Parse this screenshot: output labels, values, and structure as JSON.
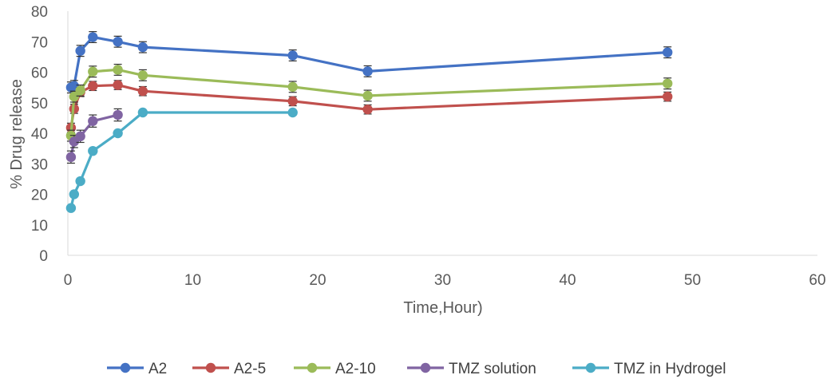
{
  "chart_data": {
    "type": "line",
    "title": "",
    "xlabel": "Time,Hour)",
    "ylabel": "% Drug release",
    "xlim": [
      0,
      60
    ],
    "ylim": [
      0,
      80
    ],
    "xticks": [
      0,
      10,
      20,
      30,
      40,
      50,
      60
    ],
    "yticks": [
      0,
      10,
      20,
      30,
      40,
      50,
      60,
      70,
      80
    ],
    "grid": false,
    "legend_position": "bottom",
    "error_bars": true,
    "series": [
      {
        "name": "A2",
        "color": "#4472C4",
        "x": [
          0.25,
          0.5,
          1,
          2,
          4,
          6,
          18,
          24,
          48
        ],
        "y": [
          55,
          55.5,
          67,
          71.5,
          70,
          68.2,
          65.5,
          60.3,
          66.5
        ],
        "err": [
          1.8,
          1.8,
          1.8,
          1.8,
          1.8,
          1.8,
          1.8,
          1.8,
          1.8
        ]
      },
      {
        "name": "A2-5",
        "color": "#C0504D",
        "x": [
          0.25,
          0.5,
          1,
          2,
          4,
          6,
          18,
          24,
          48
        ],
        "y": [
          41.8,
          48,
          53.5,
          55.5,
          55.8,
          53.8,
          50.5,
          47.8,
          52
        ],
        "err": [
          1.5,
          1.5,
          1.5,
          1.5,
          1.5,
          1.5,
          1.5,
          1.5,
          1.5
        ]
      },
      {
        "name": "A2-10",
        "color": "#9BBB59",
        "x": [
          0.25,
          0.5,
          1,
          2,
          4,
          6,
          18,
          24,
          48
        ],
        "y": [
          39.2,
          52,
          54,
          60.2,
          60.8,
          59,
          55.2,
          52.3,
          56.3
        ],
        "err": [
          1.8,
          1.8,
          1.8,
          1.8,
          1.8,
          1.8,
          1.8,
          1.8,
          1.8
        ]
      },
      {
        "name": "TMZ solution",
        "color": "#8064A2",
        "x": [
          0.25,
          0.5,
          1,
          2,
          4
        ],
        "y": [
          32.2,
          37.3,
          39,
          44,
          46
        ],
        "err": [
          2,
          2,
          2,
          2,
          2
        ]
      },
      {
        "name": "TMZ in Hydrogel",
        "color": "#4BACC6",
        "x": [
          0.25,
          0.5,
          1,
          2,
          4,
          6,
          18
        ],
        "y": [
          15.5,
          20,
          24.3,
          34.2,
          40,
          46.8,
          46.8
        ],
        "err": [
          0,
          0,
          0,
          0,
          0,
          0,
          0
        ]
      }
    ]
  }
}
